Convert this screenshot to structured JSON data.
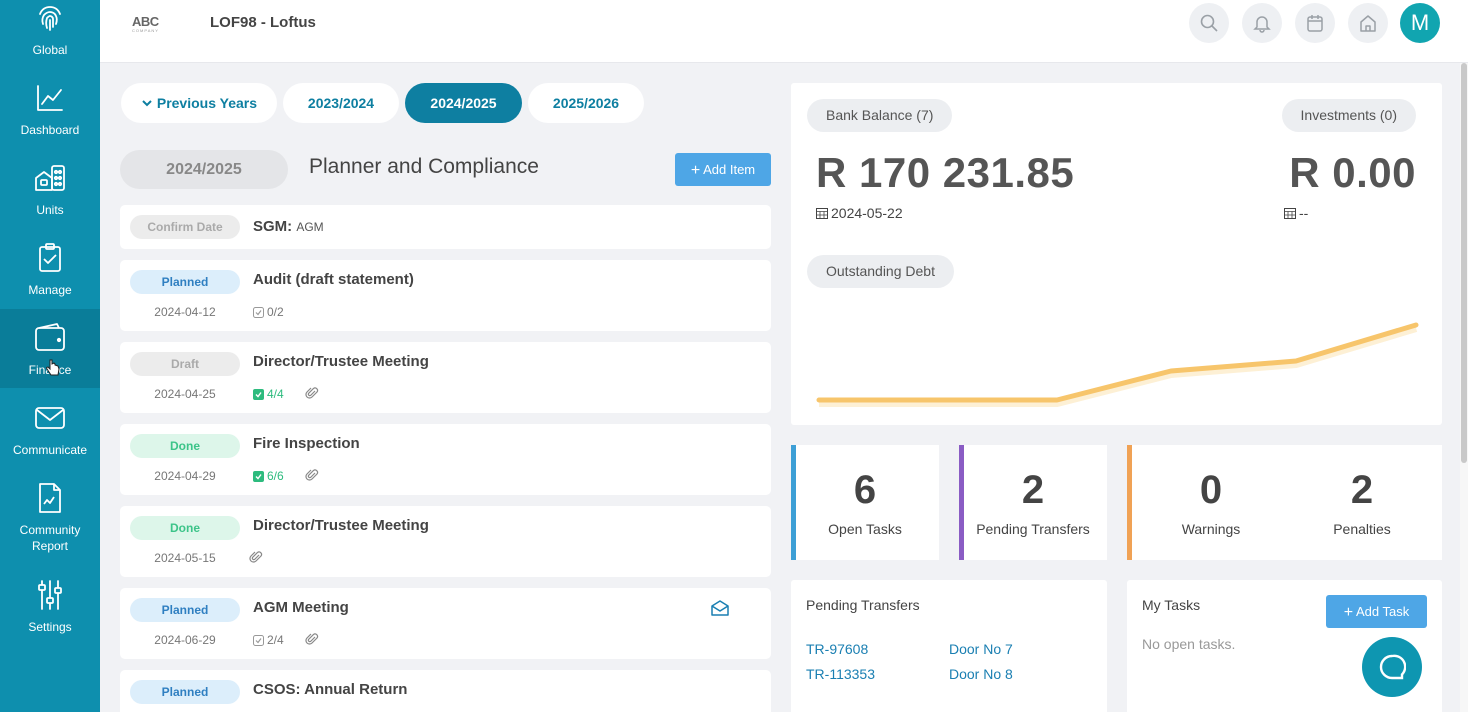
{
  "sidebar": {
    "items": [
      {
        "label": "Global",
        "icon": "fingerprint-icon"
      },
      {
        "label": "Dashboard",
        "icon": "line-chart-icon"
      },
      {
        "label": "Units",
        "icon": "buildings-icon"
      },
      {
        "label": "Manage",
        "icon": "clipboard-check-icon"
      },
      {
        "label": "Finance",
        "icon": "wallet-icon"
      },
      {
        "label": "Communicate",
        "icon": "envelope-icon"
      },
      {
        "label": "Community Report",
        "icon": "report-icon"
      },
      {
        "label": "Settings",
        "icon": "sliders-icon"
      }
    ]
  },
  "header": {
    "logo_text": "ABC",
    "logo_sub": "COMPANY",
    "title": "LOF98 - Loftus",
    "avatar_letter": "M",
    "icons": [
      "search-icon",
      "bell-icon",
      "calendar-icon",
      "home-icon"
    ]
  },
  "year_tabs": {
    "previous": "Previous Years",
    "tabs": [
      "2023/2024",
      "2024/2025",
      "2025/2026"
    ],
    "active": "2024/2025"
  },
  "planner": {
    "year": "2024/2025",
    "title": "Planner and Compliance",
    "add_item": "Add Item",
    "items": [
      {
        "status": "Confirm Date",
        "title": "SGM:",
        "subtitle": "AGM"
      },
      {
        "status": "Planned",
        "title": "Audit (draft statement)",
        "date": "2024-04-12",
        "tasks": "0/2"
      },
      {
        "status": "Draft",
        "title": "Director/Trustee Meeting",
        "date": "2024-04-25",
        "tasks": "4/4"
      },
      {
        "status": "Done",
        "title": "Fire Inspection",
        "date": "2024-04-29",
        "tasks": "6/6"
      },
      {
        "status": "Done",
        "title": "Director/Trustee Meeting",
        "date": "2024-05-15"
      },
      {
        "status": "Planned",
        "title": "AGM Meeting",
        "date": "2024-06-29",
        "tasks": "2/4"
      },
      {
        "status": "Planned",
        "title": "CSOS: Annual Return"
      }
    ]
  },
  "balances": {
    "bank_label": "Bank Balance (7)",
    "bank_amount": "R 170 231.85",
    "bank_date": "2024-05-22",
    "investments_label": "Investments (0)",
    "investments_amount": "R 0.00",
    "investments_date": "--",
    "debt_label": "Outstanding Debt",
    "line_color": "#f7c56b"
  },
  "stats": [
    {
      "value": "6",
      "label": "Open Tasks",
      "color": "#3d9fd6"
    },
    {
      "value": "2",
      "label": "Pending Transfers",
      "color": "#8a5cc4"
    },
    {
      "value": "0",
      "label": "Warnings",
      "color": "#f0a255"
    },
    {
      "value": "2",
      "label": "Penalties"
    }
  ],
  "pending_transfers": {
    "title": "Pending Transfers",
    "rows": [
      {
        "ref": "TR-97608",
        "unit": "Door No 7"
      },
      {
        "ref": "TR-113353",
        "unit": "Door No 8"
      }
    ]
  },
  "my_tasks": {
    "title": "My Tasks",
    "add_task": "Add Task",
    "empty": "No open tasks."
  },
  "colors": {
    "sidebar": "#0e8fae",
    "accent": "#0e7fa1",
    "button": "#4ea6e6"
  }
}
